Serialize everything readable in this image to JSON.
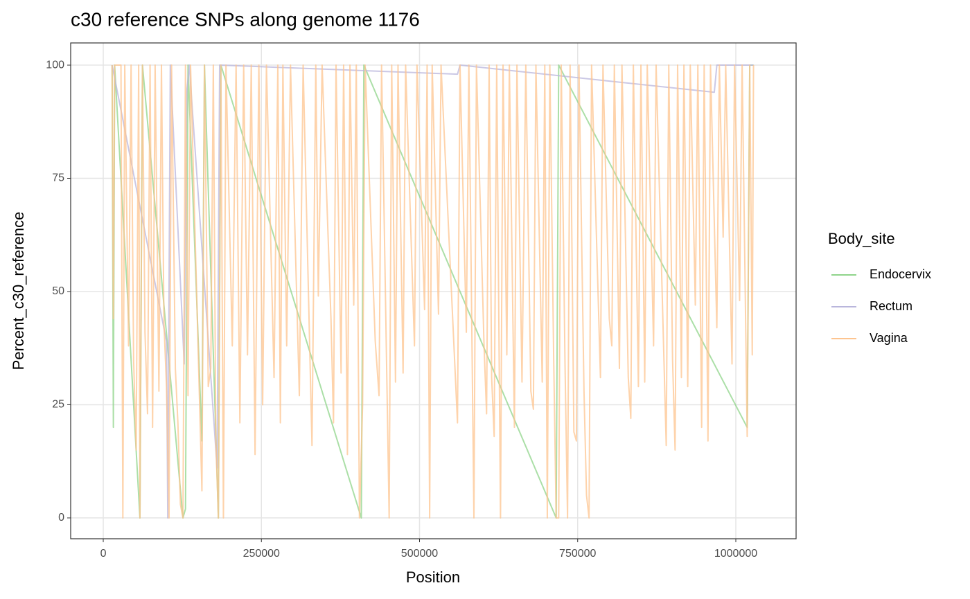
{
  "chart_data": {
    "type": "line",
    "title": "c30 reference SNPs along genome 1176",
    "x_label": "Position",
    "y_label": "Percent_c30_reference",
    "legend_title": "Body_site",
    "legend_position": "right",
    "grid": true,
    "xlim": [
      -51500,
      1095300
    ],
    "ylim": [
      -4.6,
      104.9
    ],
    "xticks": [
      0,
      250000,
      500000,
      750000,
      1000000
    ],
    "yticks": [
      0,
      25,
      50,
      75,
      100
    ],
    "series": [
      {
        "name": "Endocervix",
        "color": "#8fd48a",
        "x": [
          14000,
          16000,
          18000,
          58000,
          62000,
          126000,
          130000,
          134000,
          156000,
          160000,
          182000,
          186000,
          408000,
          412000,
          716000,
          720000,
          1018000,
          1022000,
          1028000
        ],
        "values": [
          100,
          20,
          100,
          0,
          100,
          0,
          2,
          100,
          17,
          100,
          0,
          100,
          0,
          100,
          0,
          100,
          20,
          100,
          100
        ]
      },
      {
        "name": "Rectum",
        "color": "#b9b6dc",
        "x": [
          14000,
          100000,
          102000,
          106000,
          128000,
          132000,
          136000,
          180000,
          184000,
          560000,
          564000,
          966000,
          970000,
          1028000
        ],
        "values": [
          100,
          39,
          0,
          100,
          34,
          94,
          100,
          11,
          100,
          98,
          100,
          94,
          100,
          100
        ]
      },
      {
        "name": "Vagina",
        "color": "#fdc48f",
        "x": [
          14000,
          16000,
          18000,
          28000,
          31000,
          34000,
          40000,
          44000,
          48000,
          52000,
          56000,
          58000,
          62000,
          66000,
          70000,
          74000,
          78000,
          82000,
          88000,
          92000,
          96000,
          100000,
          104000,
          108000,
          114000,
          118000,
          122000,
          126000,
          130000,
          134000,
          138000,
          156000,
          160000,
          166000,
          170000,
          174000,
          178000,
          182000,
          186000,
          190000,
          194000,
          204000,
          210000,
          216000,
          222000,
          228000,
          234000,
          240000,
          246000,
          252000,
          258000,
          270000,
          276000,
          280000,
          284000,
          290000,
          296000,
          310000,
          316000,
          330000,
          336000,
          340000,
          346000,
          360000,
          364000,
          368000,
          376000,
          380000,
          386000,
          390000,
          396000,
          400000,
          405000,
          410000,
          414000,
          430000,
          436000,
          440000,
          452000,
          456000,
          462000,
          466000,
          474000,
          478000,
          492000,
          496000,
          508000,
          512000,
          516000,
          520000,
          530000,
          534000,
          560000,
          564000,
          574000,
          578000,
          586000,
          590000,
          602000,
          606000,
          610000,
          614000,
          618000,
          622000,
          628000,
          632000,
          638000,
          642000,
          650000,
          654000,
          662000,
          668000,
          676000,
          680000,
          684000,
          694000,
          698000,
          702000,
          706000,
          712000,
          716000,
          720000,
          724000,
          730000,
          734000,
          738000,
          744000,
          748000,
          752000,
          760000,
          764000,
          768000,
          772000,
          786000,
          790000,
          800000,
          804000,
          808000,
          816000,
          820000,
          830000,
          834000,
          838000,
          846000,
          850000,
          856000,
          860000,
          870000,
          874000,
          890000,
          894000,
          900000,
          904000,
          908000,
          914000,
          918000,
          924000,
          928000,
          936000,
          940000,
          946000,
          950000,
          956000,
          960000,
          970000,
          974000,
          980000,
          984000,
          994000,
          998000,
          1006000,
          1010000,
          1018000,
          1022000,
          1026000,
          1028000
        ],
        "values": [
          100,
          44,
          100,
          100,
          0,
          100,
          38,
          100,
          35,
          15,
          100,
          0,
          100,
          41,
          23,
          100,
          20,
          100,
          28,
          100,
          43,
          29,
          0,
          100,
          33,
          21,
          3,
          0,
          100,
          27,
          100,
          6,
          100,
          29,
          33,
          100,
          17,
          0,
          100,
          0,
          100,
          38,
          100,
          21,
          100,
          36,
          100,
          14,
          100,
          25,
          100,
          31,
          100,
          21,
          100,
          38,
          100,
          27,
          100,
          16,
          100,
          49,
          100,
          44,
          21,
          100,
          32,
          100,
          14,
          100,
          47,
          100,
          0,
          25,
          100,
          39,
          27,
          100,
          0,
          100,
          30,
          100,
          32,
          100,
          38,
          100,
          46,
          100,
          0,
          100,
          45,
          100,
          21,
          100,
          41,
          100,
          0,
          100,
          38,
          23,
          100,
          31,
          18,
          100,
          0,
          100,
          36,
          100,
          20,
          100,
          30,
          100,
          28,
          24,
          100,
          30,
          100,
          0,
          100,
          36,
          0,
          0,
          100,
          34,
          0,
          100,
          19,
          17,
          100,
          28,
          5,
          0,
          100,
          31,
          100,
          44,
          38,
          100,
          33,
          100,
          31,
          22,
          100,
          29,
          100,
          30,
          100,
          38,
          100,
          16,
          100,
          35,
          15,
          100,
          31,
          100,
          29,
          100,
          47,
          100,
          20,
          100,
          17,
          100,
          42,
          100,
          62,
          100,
          34,
          100,
          48,
          100,
          18,
          100,
          36,
          100
        ]
      }
    ]
  }
}
